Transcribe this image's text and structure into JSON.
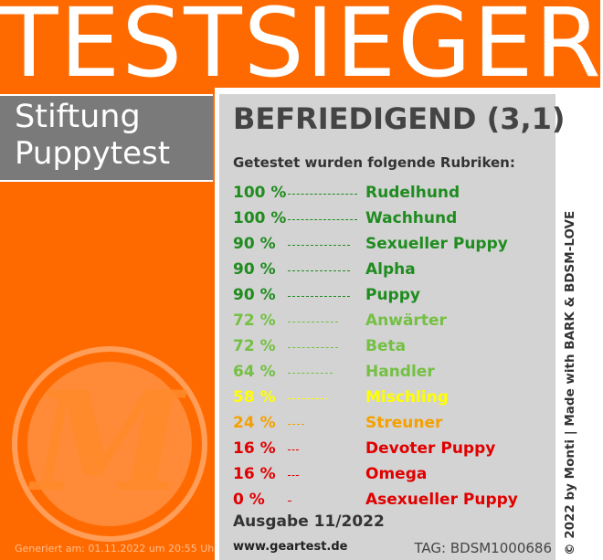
{
  "header": {
    "title": "TESTSIEGER"
  },
  "brand": {
    "line1": "Stiftung",
    "line2": "Puppytest"
  },
  "logo": {
    "letter": "M",
    "icon": "m-logo-icon"
  },
  "generated": "Generiert am: 01.11.2022 um 20:55 Uhr",
  "rating": "BEFRIEDIGEND (3,1)",
  "intro": "Getestet wurden folgende Rubriken:",
  "rows": [
    {
      "pct": "100 %",
      "value": 100,
      "name": "Rudelhund",
      "color": "#1f8c1f"
    },
    {
      "pct": "100 %",
      "value": 100,
      "name": "Wachhund",
      "color": "#1f8c1f"
    },
    {
      "pct": "90 %",
      "value": 90,
      "name": "Sexueller Puppy",
      "color": "#1f8c1f"
    },
    {
      "pct": "90 %",
      "value": 90,
      "name": "Alpha",
      "color": "#1f8c1f"
    },
    {
      "pct": "90 %",
      "value": 90,
      "name": "Puppy",
      "color": "#1f8c1f"
    },
    {
      "pct": "72 %",
      "value": 72,
      "name": "Anwärter",
      "color": "#74c043"
    },
    {
      "pct": "72 %",
      "value": 72,
      "name": "Beta",
      "color": "#74c043"
    },
    {
      "pct": "64 %",
      "value": 64,
      "name": "Handler",
      "color": "#74c043"
    },
    {
      "pct": "58 %",
      "value": 58,
      "name": "Mischling",
      "color": "#ffff00"
    },
    {
      "pct": "24 %",
      "value": 24,
      "name": "Streuner",
      "color": "#f5a000"
    },
    {
      "pct": "16 %",
      "value": 16,
      "name": "Devoter Puppy",
      "color": "#e00000"
    },
    {
      "pct": "16 %",
      "value": 16,
      "name": "Omega",
      "color": "#e00000"
    },
    {
      "pct": "0 %",
      "value": 0,
      "name": "Asexueller Puppy",
      "color": "#e00000"
    }
  ],
  "edition": "Ausgabe 11/2022",
  "website": "www.geartest.de",
  "tag": "TAG: BDSM1000686",
  "side_text": "© 2022 by Monti | Made with BARK & BDSM-LOVE",
  "colors": {
    "orange": "#ff6a00",
    "gray_box": "#7a7a7a",
    "panel": "#d3d3d3"
  }
}
